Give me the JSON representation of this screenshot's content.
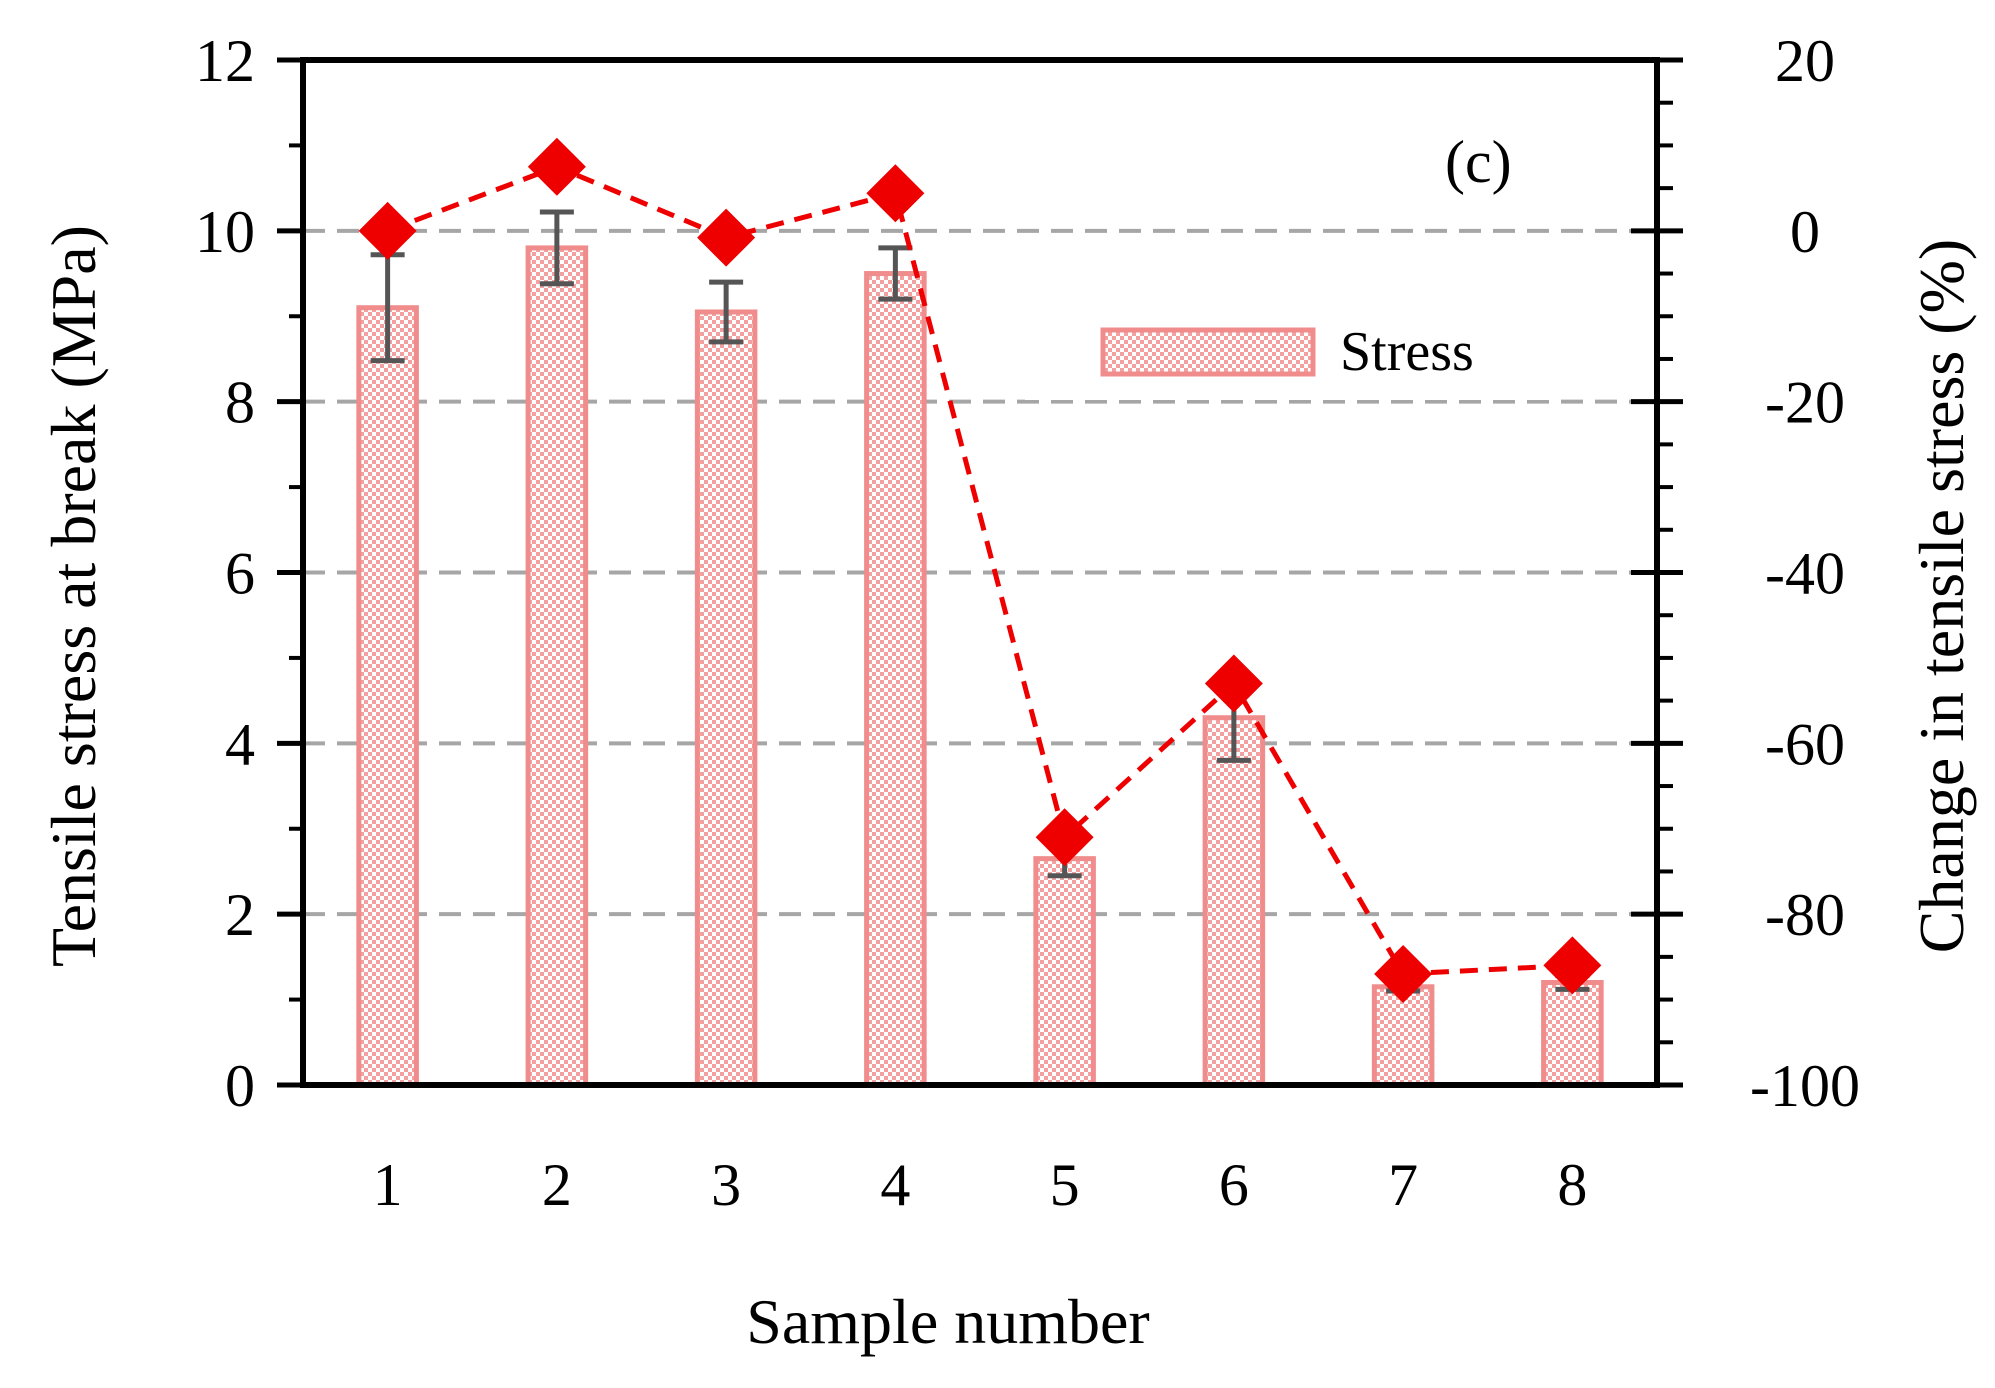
{
  "chart_data": {
    "type": "bar",
    "panel_label": "(c)",
    "categories": [
      "1",
      "2",
      "3",
      "4",
      "5",
      "6",
      "7",
      "8"
    ],
    "xlabel": "Sample number",
    "ylabel": "Tensile stress at break (MPa)",
    "y2label": "Change in tensile stress (%)",
    "ylim": [
      0,
      12
    ],
    "yticks": [
      0,
      2,
      4,
      6,
      8,
      10,
      12
    ],
    "y2lim": [
      -100,
      20
    ],
    "y2ticks": [
      -100,
      -80,
      -60,
      -40,
      -20,
      0,
      20
    ],
    "grid": "horizontal dashed",
    "legend": {
      "entries": [
        "Stress"
      ],
      "position": "upper-right"
    },
    "series": [
      {
        "name": "Stress",
        "kind": "bar",
        "axis": "left",
        "values": [
          9.1,
          9.8,
          9.05,
          9.5,
          2.65,
          4.3,
          1.15,
          1.2
        ],
        "error": [
          0.62,
          0.42,
          0.35,
          0.3,
          0.2,
          0.5,
          0.05,
          0.08
        ],
        "color": "#f08c8c"
      },
      {
        "name": "Change in tensile stress",
        "kind": "line",
        "axis": "right",
        "values": [
          0,
          7.5,
          -0.8,
          4.4,
          -71,
          -53,
          -87,
          -86
        ],
        "color": "#ee0000"
      }
    ]
  }
}
